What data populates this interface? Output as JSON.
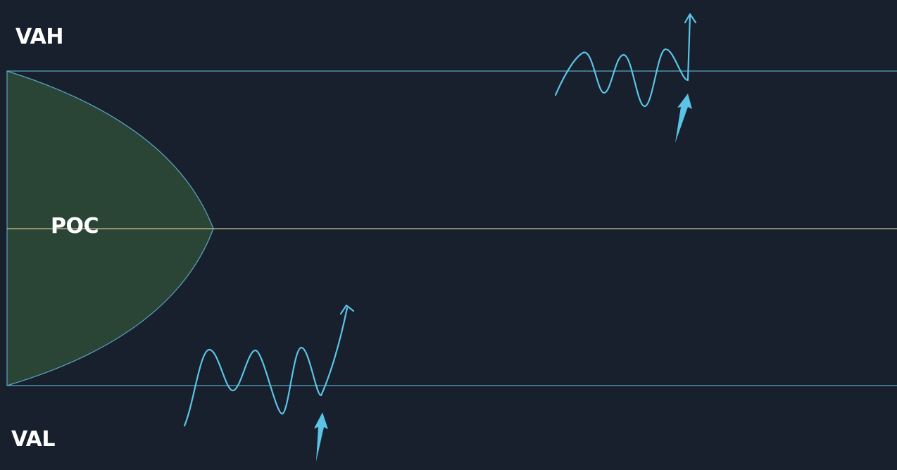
{
  "labels": {
    "vah": "VAH",
    "poc": "POC",
    "val": "VAL"
  },
  "colors": {
    "background": "#17202c",
    "value_area_line": "#5aa6c4",
    "poc_line": "#cdbf95",
    "profile_fill": "#2a4536",
    "profile_stroke": "#5aa6c4",
    "price_path": "#5cc3e6",
    "marker_arrow": "#5cc3e6",
    "text": "#ffffff"
  },
  "icons": {
    "breakout_arrow": "arrow-up-icon",
    "entry_marker": "thick-arrow-up-icon"
  }
}
